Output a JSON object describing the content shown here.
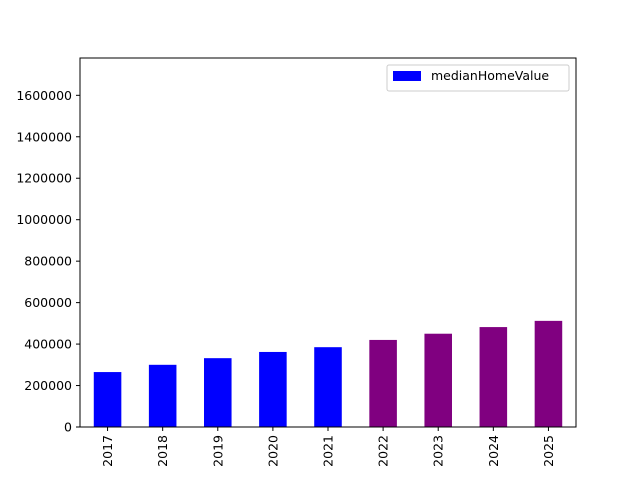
{
  "chart_data": {
    "type": "bar",
    "categories": [
      "2017",
      "2018",
      "2019",
      "2020",
      "2021",
      "2022",
      "2023",
      "2024",
      "2025"
    ],
    "values": [
      265000,
      300000,
      332000,
      362000,
      385000,
      420000,
      450000,
      482000,
      512000
    ],
    "bar_colors": [
      "#0000ff",
      "#0000ff",
      "#0000ff",
      "#0000ff",
      "#0000ff",
      "#800080",
      "#800080",
      "#800080",
      "#800080"
    ],
    "series_name": "medianHomeValue",
    "legend_color": "#0000ff",
    "legend_position": "top-right",
    "ylim": [
      0,
      1780000
    ],
    "yticks": [
      0,
      200000,
      400000,
      600000,
      800000,
      1000000,
      1200000,
      1400000,
      1600000
    ],
    "xtick_rotation": "vertical",
    "grid": false
  }
}
